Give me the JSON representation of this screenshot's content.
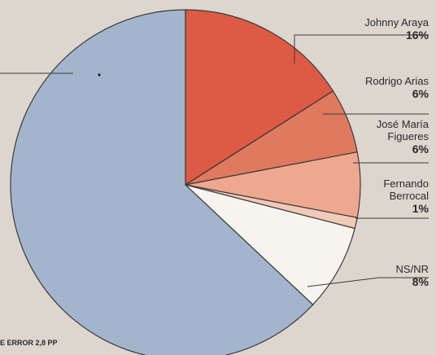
{
  "chart_data": {
    "type": "pie",
    "slices": [
      {
        "label": [
          "Johnny Araya"
        ],
        "value_label": "16%",
        "value": 16,
        "color": "#dd5a45"
      },
      {
        "label": [
          "Rodrigo Arias"
        ],
        "value_label": "6%",
        "value": 6,
        "color": "#e07a5f"
      },
      {
        "label": [
          "José María",
          "Figueres"
        ],
        "value_label": "6%",
        "value": 6,
        "color": "#eea88f"
      },
      {
        "label": [
          "Fernando",
          "Berrocal"
        ],
        "value_label": "1%",
        "value": 1,
        "color": "#f2cab8"
      },
      {
        "label": [
          "NS/NR"
        ],
        "value_label": "8%",
        "value": 8,
        "color": "#f7f3ee"
      },
      {
        "label": [],
        "value_label": "",
        "value": 63,
        "color": "#a3b5cc"
      }
    ],
    "note": "E ERROR 2,8 PP"
  }
}
